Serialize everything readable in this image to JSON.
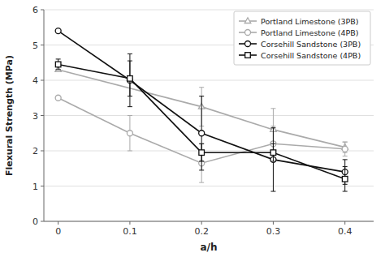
{
  "chart_data": {
    "type": "line",
    "xlabel": "a/h",
    "ylabel": "Flexural Strength (MPa)",
    "xlim": [
      -0.02,
      0.44
    ],
    "ylim": [
      0,
      6
    ],
    "xticks": [
      0,
      0.1,
      0.2,
      0.3,
      0.4
    ],
    "yticks": [
      0,
      1,
      2,
      3,
      4,
      5,
      6
    ],
    "grid": true,
    "legend": "upper right",
    "series": [
      {
        "name": "Portland Limestone (3PB)",
        "color": "#aaaaaa",
        "marker": "triangle",
        "x": [
          0,
          0.2,
          0.3,
          0.4
        ],
        "values": [
          4.3,
          3.25,
          2.6,
          2.1
        ],
        "errors": [
          0.0,
          0.55,
          0.6,
          0.15
        ]
      },
      {
        "name": "Portland Limestone (4PB)",
        "color": "#aaaaaa",
        "marker": "circle",
        "x": [
          0,
          0.1,
          0.2,
          0.3,
          0.4
        ],
        "values": [
          3.5,
          2.5,
          1.65,
          2.2,
          2.05
        ],
        "errors": [
          0.0,
          0.5,
          0.55,
          0.5,
          0.2
        ]
      },
      {
        "name": "Corsehill Sandstone (3PB)",
        "color": "#111111",
        "marker": "circle",
        "x": [
          0,
          0.1,
          0.2,
          0.3,
          0.4
        ],
        "values": [
          5.4,
          4.0,
          2.5,
          1.75,
          1.4
        ],
        "errors": [
          0.0,
          0.75,
          1.05,
          0.9,
          0.35
        ]
      },
      {
        "name": "Corsehill Sandstone (4PB)",
        "color": "#111111",
        "marker": "square",
        "x": [
          0,
          0.1,
          0.2,
          0.3,
          0.4
        ],
        "values": [
          4.45,
          4.05,
          1.95,
          1.95,
          1.2
        ],
        "errors": [
          0.15,
          0.5,
          0.25,
          0.25,
          0.35
        ]
      }
    ]
  }
}
